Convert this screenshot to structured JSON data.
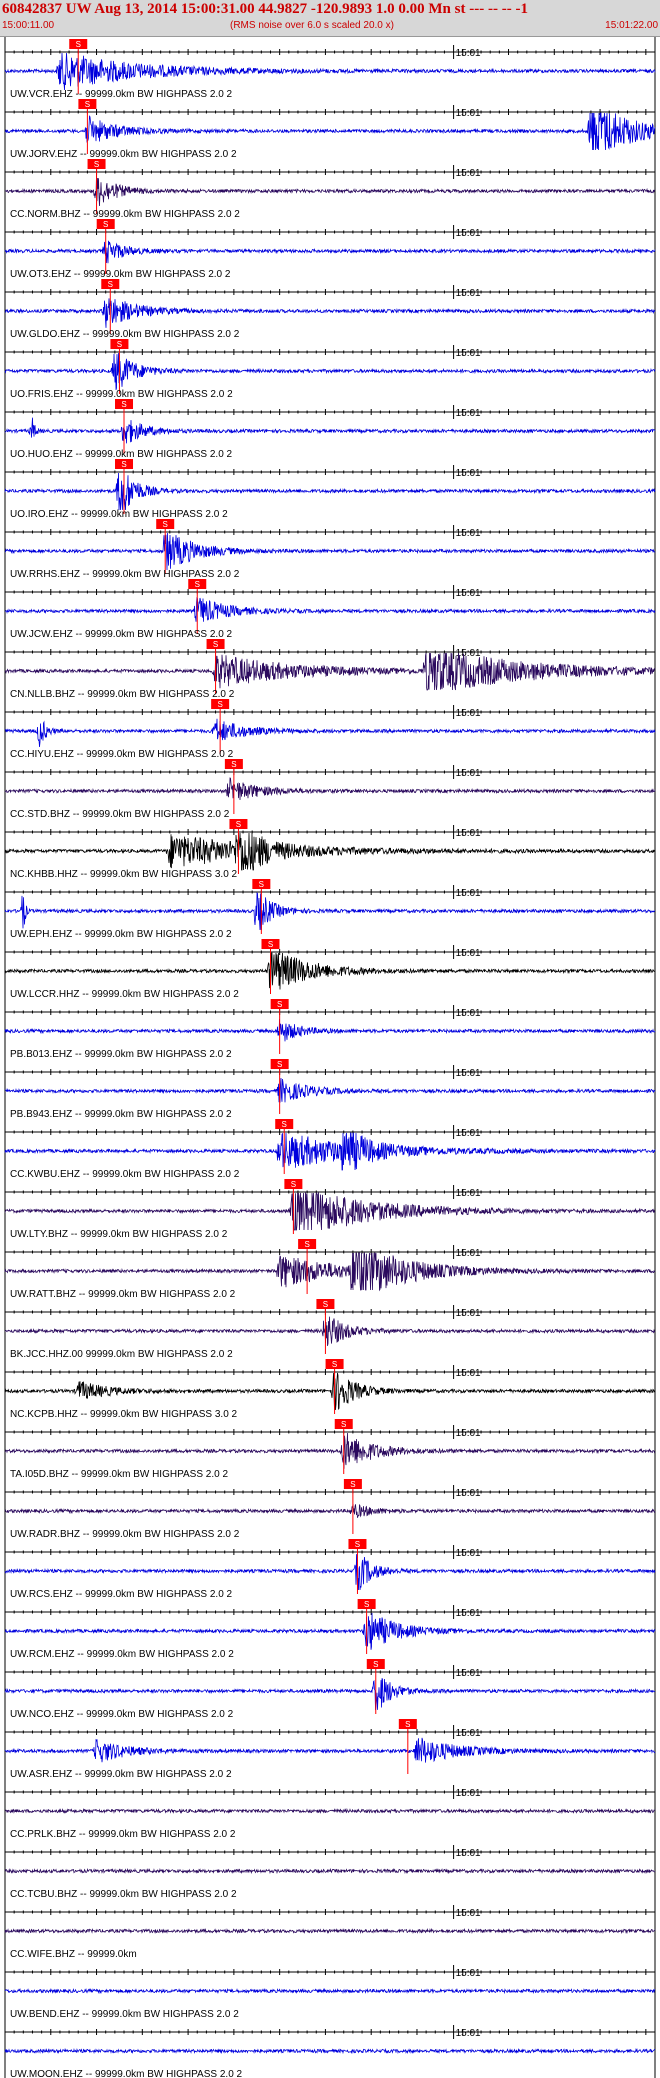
{
  "header": {
    "title": "60842837 UW Aug 13, 2014 15:00:31.00   44.9827 -120.9893  1.0 0.00 Mn st --- -- --  -1",
    "start_time": "15:00:11.00",
    "noise_note": "(RMS noise over 6.0 s scaled 20.0 x)",
    "end_time": "15:01:22.00"
  },
  "colors": {
    "title": "#cc0000",
    "pick_marker": "#ff0000",
    "blue": "#0000dd",
    "purple": "#2b0a5e",
    "black": "#000000"
  },
  "chart_data": {
    "type": "line",
    "x_unit": "seconds after 15:00:11.00",
    "x_range": [
      0,
      71
    ],
    "minute_tick_label": "15:01",
    "pick_label": "S",
    "traces": [
      {
        "label": "UW.VCR.EHZ -- 99999.0km BW  HIGHPASS  2.0  2",
        "color": "blue",
        "pick": 8,
        "events": [
          [
            6,
            8,
            0.8
          ],
          [
            10,
            0,
            0
          ]
        ]
      },
      {
        "label": "UW.JORV.EHZ -- 99999.0km BW  HIGHPASS  2.0  2",
        "color": "blue",
        "pick": 9,
        "events": [
          [
            9,
            3,
            0.6
          ],
          [
            64,
            4,
            1.4
          ]
        ]
      },
      {
        "label": "CC.NORM.BHZ -- 99999.0km BW  HIGHPASS  2.0  2",
        "color": "purple",
        "pick": 10,
        "events": [
          [
            10,
            2,
            0.7
          ]
        ]
      },
      {
        "label": "UW.OT3.EHZ -- 99999.0km BW  HIGHPASS  2.0  2",
        "color": "blue",
        "pick": 11,
        "events": [
          [
            11,
            2,
            0.5
          ]
        ]
      },
      {
        "label": "UW.GLDO.EHZ -- 99999.0km BW  HIGHPASS  2.0  2",
        "color": "blue",
        "pick": 11.5,
        "events": [
          [
            11,
            3,
            0.7
          ]
        ]
      },
      {
        "label": "UO.FRIS.EHZ -- 99999.0km BW  HIGHPASS  2.0  2",
        "color": "blue",
        "pick": 12.5,
        "events": [
          [
            12,
            2,
            0.9
          ]
        ]
      },
      {
        "label": "UO.HUO.EHZ -- 99999.0km BW  HIGHPASS  2.0  2",
        "color": "blue",
        "pick": 13,
        "events": [
          [
            3,
            0.3,
            0.5
          ],
          [
            13,
            2,
            0.6
          ]
        ]
      },
      {
        "label": "UO.IRO.EHZ -- 99999.0km BW  HIGHPASS  2.0  2",
        "color": "blue",
        "pick": 13,
        "events": [
          [
            12.5,
            1.5,
            1.3
          ]
        ]
      },
      {
        "label": "UW.RRHS.EHZ -- 99999.0km BW  HIGHPASS  2.0  2",
        "color": "blue",
        "pick": 17.5,
        "events": [
          [
            17.5,
            3,
            0.9
          ]
        ]
      },
      {
        "label": "UW.JCW.EHZ -- 99999.0km BW  HIGHPASS  2.0  2",
        "color": "blue",
        "pick": 21,
        "events": [
          [
            21,
            3,
            0.6
          ]
        ]
      },
      {
        "label": "CN.NLLB.BHZ -- 99999.0km BW  HIGHPASS  2.0  2",
        "color": "purple",
        "pick": 23,
        "events": [
          [
            23,
            8,
            0.7
          ],
          [
            46,
            10,
            1.0
          ]
        ]
      },
      {
        "label": "CC.HIYU.EHZ -- 99999.0km BW  HIGHPASS  2.0  2",
        "color": "blue",
        "pick": 23.5,
        "events": [
          [
            3.8,
            0.6,
            0.7
          ],
          [
            23,
            3,
            0.5
          ]
        ]
      },
      {
        "label": "CC.STD.BHZ -- 99999.0km BW  HIGHPASS  2.0  2",
        "color": "purple",
        "pick": 25,
        "events": [
          [
            24.5,
            3,
            0.5
          ]
        ]
      },
      {
        "label": "NC.KHBB.HHZ -- 99999.0km BW  HIGHPASS  3.0  2",
        "color": "black",
        "pick": 25.5,
        "events": [
          [
            18,
            10,
            0.7
          ],
          [
            25.5,
            2,
            1.2
          ]
        ]
      },
      {
        "label": "UW.EPH.EHZ -- 99999.0km BW  HIGHPASS  2.0  2",
        "color": "blue",
        "pick": 28,
        "events": [
          [
            2,
            0.2,
            1.0
          ],
          [
            27.5,
            1.5,
            1.0
          ]
        ]
      },
      {
        "label": "UW.LCCR.HHZ -- 99999.0km BW  HIGHPASS  2.0  2",
        "color": "black",
        "pick": 29,
        "events": [
          [
            29,
            4,
            1.0
          ]
        ]
      },
      {
        "label": "PB.B013.EHZ -- 99999.0km BW  HIGHPASS  2.0  2",
        "color": "blue",
        "pick": 30,
        "events": [
          [
            30,
            2,
            0.5
          ]
        ]
      },
      {
        "label": "PB.B943.EHZ -- 99999.0km BW  HIGHPASS  2.0  2",
        "color": "blue",
        "pick": 30,
        "events": [
          [
            30,
            3,
            0.5
          ]
        ]
      },
      {
        "label": "CC.KWBU.EHZ -- 99999.0km BW  HIGHPASS  2.0  2",
        "color": "blue",
        "pick": 30.5,
        "events": [
          [
            30,
            8,
            0.8
          ],
          [
            37,
            2,
            0.9
          ]
        ]
      },
      {
        "label": "UW.LTY.BHZ -- 99999.0km BW  HIGHPASS  2.0  2",
        "color": "purple",
        "pick": 31.5,
        "events": [
          [
            31.5,
            7,
            1.3
          ]
        ]
      },
      {
        "label": "UW.RATT.BHZ -- 99999.0km BW  HIGHPASS  2.0  2",
        "color": "purple",
        "pick": 33,
        "events": [
          [
            30,
            6,
            0.7
          ],
          [
            38,
            5,
            1.3
          ]
        ]
      },
      {
        "label": "BK.JCC.HHZ.00 99999.0km BW  HIGHPASS  2.0  2",
        "color": "purple",
        "pick": 35,
        "events": [
          [
            35,
            2,
            0.8
          ]
        ]
      },
      {
        "label": "NC.KCPB.HHZ -- 99999.0km BW  HIGHPASS  3.0  2",
        "color": "black",
        "pick": 36,
        "events": [
          [
            8,
            3,
            0.4
          ],
          [
            36,
            2,
            1.0
          ]
        ]
      },
      {
        "label": "TA.I05D.BHZ -- 99999.0km BW  HIGHPASS  2.0  2",
        "color": "purple",
        "pick": 37,
        "events": [
          [
            37,
            3,
            0.8
          ]
        ]
      },
      {
        "label": "UW.RADR.BHZ -- 99999.0km BW  HIGHPASS  2.0  2",
        "color": "purple",
        "pick": 38,
        "events": [
          [
            38,
            2,
            0.3
          ]
        ]
      },
      {
        "label": "UW.RCS.EHZ -- 99999.0km BW  HIGHPASS  2.0  2",
        "color": "blue",
        "pick": 38.5,
        "events": [
          [
            38.5,
            1.5,
            0.9
          ]
        ]
      },
      {
        "label": "UW.RCM.EHZ -- 99999.0km BW  HIGHPASS  2.0  2",
        "color": "blue",
        "pick": 39.5,
        "events": [
          [
            39.5,
            3,
            0.9
          ]
        ]
      },
      {
        "label": "UW.NCO.EHZ -- 99999.0km BW  HIGHPASS  2.0  2",
        "color": "blue",
        "pick": 40.5,
        "events": [
          [
            40.5,
            1.5,
            1.0
          ]
        ]
      },
      {
        "label": "UW.ASR.EHZ -- 99999.0km BW  HIGHPASS  2.0  2",
        "color": "blue",
        "pick": 44,
        "events": [
          [
            10,
            3,
            0.5
          ],
          [
            45,
            4,
            0.6
          ]
        ]
      },
      {
        "label": "CC.PRLK.BHZ -- 99999.0km BW  HIGHPASS  2.0  2",
        "color": "purple",
        "pick": null,
        "events": []
      },
      {
        "label": "CC.TCBU.BHZ -- 99999.0km BW  HIGHPASS  2.0  2",
        "color": "purple",
        "pick": null,
        "events": []
      },
      {
        "label": "CC.WIFE.BHZ -- 99999.0km",
        "color": "purple",
        "pick": null,
        "events": []
      },
      {
        "label": "UW.BEND.EHZ -- 99999.0km BW  HIGHPASS  2.0  2",
        "color": "blue",
        "pick": null,
        "events": []
      },
      {
        "label": "UW.MOON.EHZ -- 99999.0km BW  HIGHPASS  2.0  2",
        "color": "blue",
        "pick": null,
        "events": []
      }
    ]
  }
}
